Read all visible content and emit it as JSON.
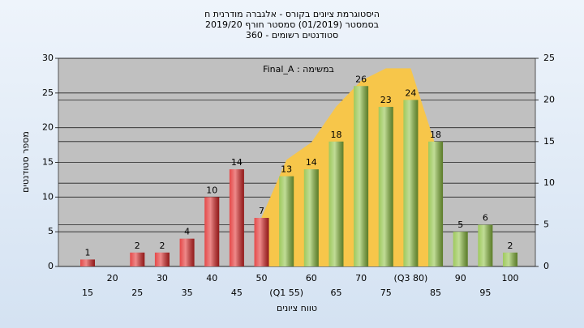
{
  "chart_data": {
    "type": "bar",
    "title": "היסטוגרמת ציונים בקורס - אלגברה מודרנית ח",
    "subtitle": "בסמסטר (01/2019) סמסטר חורף 2019/20",
    "subtitle2": "סטודנטים רשומים - 360",
    "annotation": "במשימה : Final_A",
    "x_label": "טווח ציונים",
    "y_label": "מספר סטודנטים",
    "categories": [
      "15",
      "20",
      "25",
      "30",
      "35",
      "40",
      "45",
      "50",
      "(Q1 55)",
      "60",
      "65",
      "70",
      "75",
      "(Q3 80)",
      "85",
      "90",
      "95",
      "100"
    ],
    "series": [
      {
        "values": [
          1,
          null,
          2,
          2,
          4,
          10,
          14,
          7,
          13,
          14,
          18,
          26,
          23,
          24,
          18,
          5,
          6,
          2
        ],
        "colors": [
          "#e02828",
          "#e02828",
          "#e02828",
          "#e02828",
          "#e02828",
          "#e02828",
          "#e02828",
          "#e02828",
          "#8dc040",
          "#8dc040",
          "#8dc040",
          "#8dc040",
          "#8dc040",
          "#8dc040",
          "#8dc040",
          "#8dc040",
          "#8dc040",
          "#8dc040"
        ]
      },
      {
        "type": "area",
        "axis": "y2",
        "color": "#f7c64a",
        "values": [
          null,
          null,
          null,
          null,
          null,
          null,
          null,
          5.9,
          12.8,
          14.9,
          19.2,
          22.3,
          23.8,
          23.8,
          14.5,
          null,
          null,
          null
        ]
      }
    ],
    "ylim": [
      0,
      30
    ],
    "yticks": [
      0,
      5,
      10,
      15,
      20,
      25,
      30
    ],
    "y2lim": [
      0,
      25
    ],
    "y2ticks": [
      0,
      5,
      10,
      15,
      20,
      25
    ],
    "grid": true
  }
}
